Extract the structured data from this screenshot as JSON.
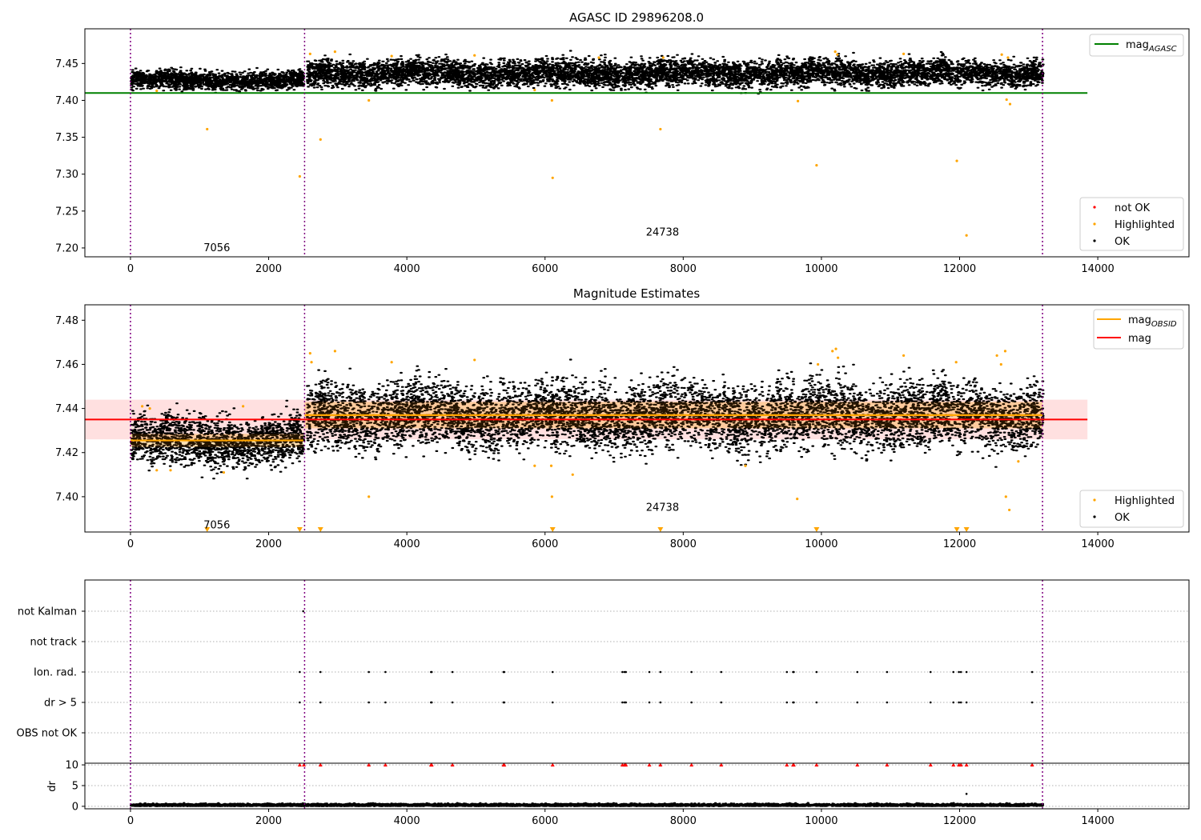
{
  "chart_data": [
    {
      "type": "scatter",
      "title": "AGASC ID 29896208.0",
      "xlim": [
        -660,
        15320
      ],
      "ylim": [
        7.188,
        7.497
      ],
      "x_ticks": [
        0,
        2000,
        4000,
        6000,
        8000,
        10000,
        12000,
        14000
      ],
      "y_ticks": [
        7.2,
        7.25,
        7.3,
        7.35,
        7.4,
        7.45
      ],
      "reference_line": {
        "name": "mag_AGASC",
        "y": 7.41,
        "x_range": [
          -660,
          13850
        ],
        "color": "#008000"
      },
      "obsid_boundaries": [
        0,
        2520,
        13200
      ],
      "obsid_labels": [
        {
          "text": "7056",
          "x": 1250,
          "y": 7.2
        },
        {
          "text": "24738",
          "x": 7700,
          "y": 7.221
        }
      ],
      "legend_top": {
        "label_main": "mag",
        "label_sub": "AGASC"
      },
      "legend_bottom": [
        {
          "label": "not OK",
          "color": "#ff0000"
        },
        {
          "label": "Highlighted",
          "color": "#ffa500"
        },
        {
          "label": "OK",
          "color": "#000000"
        }
      ],
      "ok_bands": [
        {
          "x_range": [
            0,
            2500
          ],
          "center": 7.427,
          "spread": 0.006
        },
        {
          "x_range": [
            2550,
            13200
          ],
          "center": 7.437,
          "spread": 0.009
        }
      ],
      "highlighted_points": [
        {
          "x": 1110,
          "y": 7.361
        },
        {
          "x": 2450,
          "y": 7.297
        },
        {
          "x": 2750,
          "y": 7.347
        },
        {
          "x": 3450,
          "y": 7.4
        },
        {
          "x": 6100,
          "y": 7.4
        },
        {
          "x": 6110,
          "y": 7.295
        },
        {
          "x": 7670,
          "y": 7.361
        },
        {
          "x": 9660,
          "y": 7.399
        },
        {
          "x": 9930,
          "y": 7.312
        },
        {
          "x": 11960,
          "y": 7.318
        },
        {
          "x": 12100,
          "y": 7.217
        },
        {
          "x": 12680,
          "y": 7.401
        },
        {
          "x": 12730,
          "y": 7.395
        },
        {
          "x": 5850,
          "y": 7.414
        },
        {
          "x": 380,
          "y": 7.413
        },
        {
          "x": 2600,
          "y": 7.463
        },
        {
          "x": 2960,
          "y": 7.466
        },
        {
          "x": 3780,
          "y": 7.46
        },
        {
          "x": 4980,
          "y": 7.461
        },
        {
          "x": 6780,
          "y": 7.458
        },
        {
          "x": 7710,
          "y": 7.458
        },
        {
          "x": 10200,
          "y": 7.466
        },
        {
          "x": 10230,
          "y": 7.462
        },
        {
          "x": 11190,
          "y": 7.463
        },
        {
          "x": 12610,
          "y": 7.462
        },
        {
          "x": 12700,
          "y": 7.458
        }
      ]
    },
    {
      "type": "scatter",
      "title": "Magnitude Estimates",
      "xlim": [
        -660,
        15320
      ],
      "ylim": [
        7.384,
        7.487
      ],
      "x_ticks": [
        0,
        2000,
        4000,
        6000,
        8000,
        10000,
        12000,
        14000
      ],
      "y_ticks": [
        7.4,
        7.42,
        7.44,
        7.46,
        7.48
      ],
      "mag_line": {
        "name": "mag",
        "y": 7.435,
        "band": [
          7.426,
          7.444
        ],
        "x_range": [
          -660,
          13850
        ],
        "color": "#ff0000"
      },
      "obsid_mag": [
        {
          "x_range": [
            0,
            2500
          ],
          "y": 7.4255,
          "band": [
            7.4225,
            7.4285
          ]
        },
        {
          "x_range": [
            2520,
            13200
          ],
          "y": 7.437,
          "band": [
            7.431,
            7.443
          ]
        }
      ],
      "obsid_boundaries": [
        0,
        2520,
        13200
      ],
      "obsid_labels": [
        {
          "text": "7056",
          "x": 1250,
          "y": 7.387
        },
        {
          "text": "24738",
          "x": 7700,
          "y": 7.395
        }
      ],
      "legend_top": [
        {
          "label_main": "mag",
          "label_sub": "OBSID",
          "color": "#ffa500"
        },
        {
          "label_main": "mag",
          "label_sub": "",
          "color": "#ff0000"
        }
      ],
      "legend_bottom": [
        {
          "label": "Highlighted",
          "color": "#ffa500"
        },
        {
          "label": "OK",
          "color": "#000000"
        }
      ],
      "ok_bands": [
        {
          "x_range": [
            0,
            2500
          ],
          "center": 7.4255,
          "spread": 0.0055
        },
        {
          "x_range": [
            2550,
            13200
          ],
          "center": 7.437,
          "spread": 0.0075
        }
      ],
      "highlighted_points": [
        {
          "x": 380,
          "y": 7.412
        },
        {
          "x": 580,
          "y": 7.412
        },
        {
          "x": 1350,
          "y": 7.411
        },
        {
          "x": 3450,
          "y": 7.4
        },
        {
          "x": 5850,
          "y": 7.414
        },
        {
          "x": 6090,
          "y": 7.414
        },
        {
          "x": 6100,
          "y": 7.4
        },
        {
          "x": 6400,
          "y": 7.41
        },
        {
          "x": 8900,
          "y": 7.414
        },
        {
          "x": 9650,
          "y": 7.399
        },
        {
          "x": 12670,
          "y": 7.4
        },
        {
          "x": 12720,
          "y": 7.394
        },
        {
          "x": 12850,
          "y": 7.416
        },
        {
          "x": 2600,
          "y": 7.465
        },
        {
          "x": 2620,
          "y": 7.461
        },
        {
          "x": 2960,
          "y": 7.466
        },
        {
          "x": 3780,
          "y": 7.461
        },
        {
          "x": 4980,
          "y": 7.462
        },
        {
          "x": 9950,
          "y": 7.46
        },
        {
          "x": 10160,
          "y": 7.466
        },
        {
          "x": 10210,
          "y": 7.467
        },
        {
          "x": 10240,
          "y": 7.463
        },
        {
          "x": 11190,
          "y": 7.464
        },
        {
          "x": 11950,
          "y": 7.461
        },
        {
          "x": 12540,
          "y": 7.464
        },
        {
          "x": 12600,
          "y": 7.46
        },
        {
          "x": 12660,
          "y": 7.466
        },
        {
          "x": 170,
          "y": 7.441
        },
        {
          "x": 1630,
          "y": 7.441
        },
        {
          "x": 280,
          "y": 7.44
        }
      ],
      "out_of_range_markers": [
        1110,
        2450,
        2750,
        6110,
        7670,
        9930,
        11960,
        12100
      ]
    },
    {
      "type": "scatter",
      "title": "",
      "xlim": [
        -660,
        15320
      ],
      "categories": [
        "not Kalman",
        "not track",
        "Ion. rad.",
        "dr > 5",
        "OBS not OK"
      ],
      "obsid_boundaries": [
        0,
        2520,
        13200
      ],
      "flag_points": {
        "not Kalman": [
          2500
        ],
        "not track": [],
        "Ion. rad.": [
          2450,
          2750,
          3450,
          3690,
          4350,
          4360,
          4660,
          5400,
          5410,
          6110,
          7120,
          7150,
          7170,
          7510,
          7670,
          8120,
          8550,
          9500,
          9590,
          9600,
          9930,
          10520,
          10950,
          11580,
          11910,
          11990,
          12020,
          12100,
          13050
        ],
        "dr > 5": [
          2450,
          2750,
          3450,
          3690,
          4350,
          4360,
          4660,
          5400,
          5410,
          6110,
          7120,
          7150,
          7170,
          7510,
          7670,
          8120,
          8550,
          9500,
          9590,
          9600,
          9930,
          10520,
          10950,
          11580,
          11910,
          11990,
          12020,
          12100,
          13050
        ],
        "OBS not OK": []
      }
    },
    {
      "type": "scatter",
      "title": "",
      "ylabel": "dr",
      "xlim": [
        -660,
        15320
      ],
      "ylim": [
        -0.6,
        10.4
      ],
      "x_ticks": [
        0,
        2000,
        4000,
        6000,
        8000,
        10000,
        12000,
        14000
      ],
      "y_ticks": [
        0,
        5,
        10
      ],
      "dr_ok_band": {
        "x_range": [
          0,
          13200
        ],
        "center": 0.3,
        "spread": 0.3
      },
      "clipped_points": {
        "y": 10,
        "x": [
          2450,
          2510,
          2750,
          3450,
          3690,
          4350,
          4360,
          4660,
          5400,
          5410,
          6110,
          7120,
          7150,
          7170,
          7510,
          7670,
          8120,
          8550,
          9500,
          9590,
          9600,
          9930,
          10520,
          10950,
          11580,
          11910,
          11990,
          12020,
          12100,
          13050
        ]
      },
      "other_points": [
        {
          "x": 12100,
          "y": 3
        }
      ]
    }
  ]
}
